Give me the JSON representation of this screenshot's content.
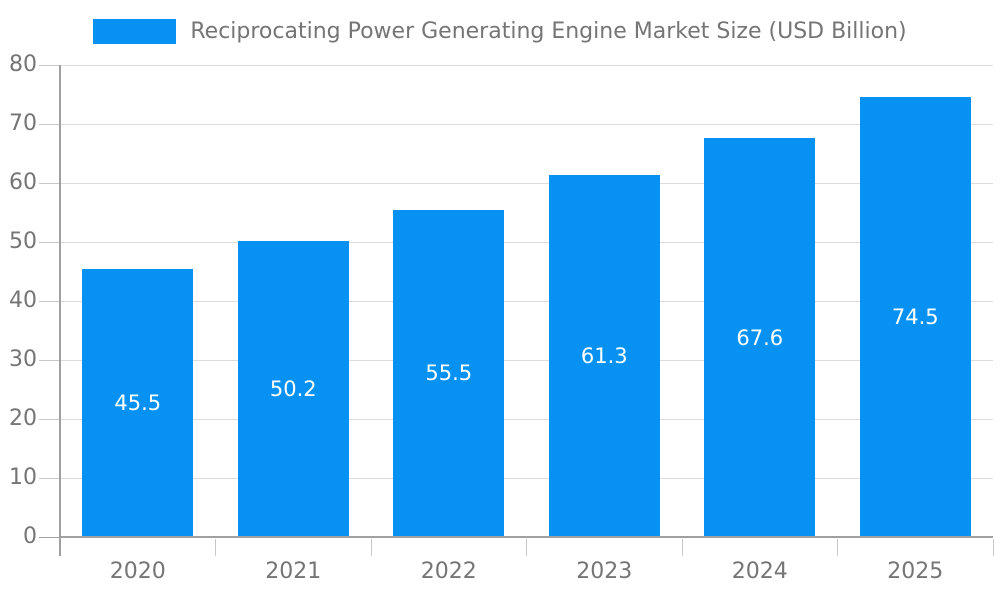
{
  "legend": {
    "label": "Reciprocating Power Generating Engine Market Size (USD Billion)"
  },
  "chart_data": {
    "type": "bar",
    "title": "Reciprocating Power Generating Engine Market Size (USD Billion)",
    "categories": [
      "2020",
      "2021",
      "2022",
      "2023",
      "2024",
      "2025"
    ],
    "series": [
      {
        "name": "Reciprocating Power Generating Engine Market Size (USD Billion)",
        "values": [
          45.5,
          50.2,
          55.5,
          61.3,
          67.6,
          74.5
        ]
      }
    ],
    "data_labels": [
      "45.5",
      "50.2",
      "55.5",
      "61.3",
      "67.6",
      "74.5"
    ],
    "xlabel": "",
    "ylabel": "",
    "ylim": [
      0,
      80
    ],
    "yticks": [
      0,
      10,
      20,
      30,
      40,
      50,
      60,
      70,
      80
    ],
    "grid": true,
    "legend_position": "top",
    "colors": {
      "bar": "#0791F2",
      "bar_label": "#FFFFFF",
      "axis_text": "#757575",
      "gridline": "#DCDCDC",
      "tick": "#C8C8C8",
      "axis_line": "#A0A0A0",
      "background": "#FFFFFF"
    }
  }
}
